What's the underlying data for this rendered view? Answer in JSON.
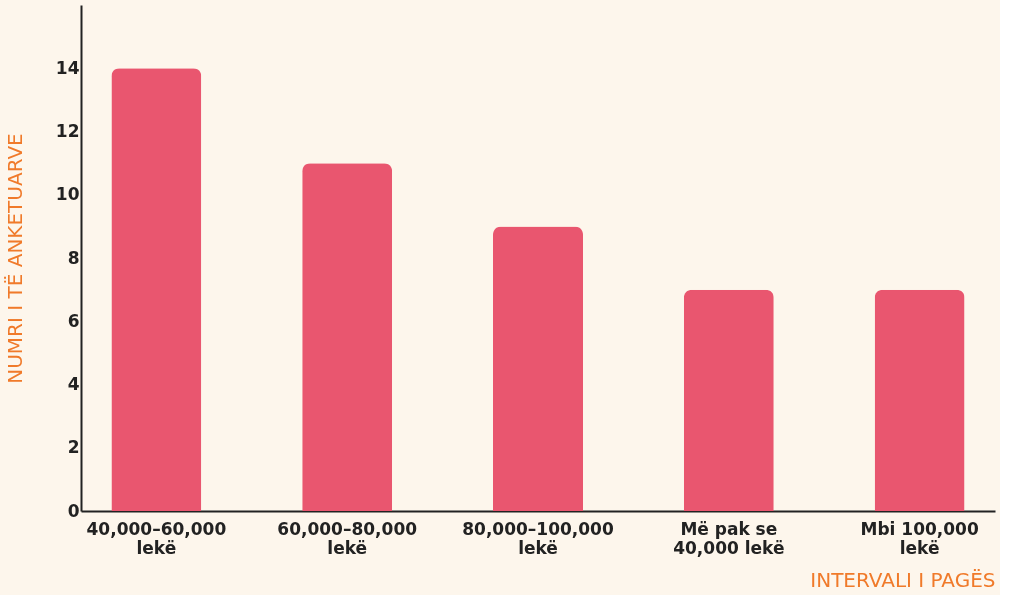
{
  "chart_data": {
    "type": "bar",
    "categories": [
      "40,000–60,000\nlekë",
      "60,000–80,000\nlekë",
      "80,000–100,000\nlekë",
      "Më pak se\n40,000 lekë",
      "Mbi 100,000\nlekë"
    ],
    "values": [
      14,
      11,
      9,
      7,
      7
    ],
    "color": "#e9566f",
    "xlabel": "INTERVALI I PAGËS",
    "ylabel": "NUMRI I TË ANKETUARVE",
    "ylim": [
      0,
      16
    ],
    "yticks": [
      0,
      2,
      4,
      6,
      8,
      10,
      12,
      14
    ],
    "grid": false
  }
}
